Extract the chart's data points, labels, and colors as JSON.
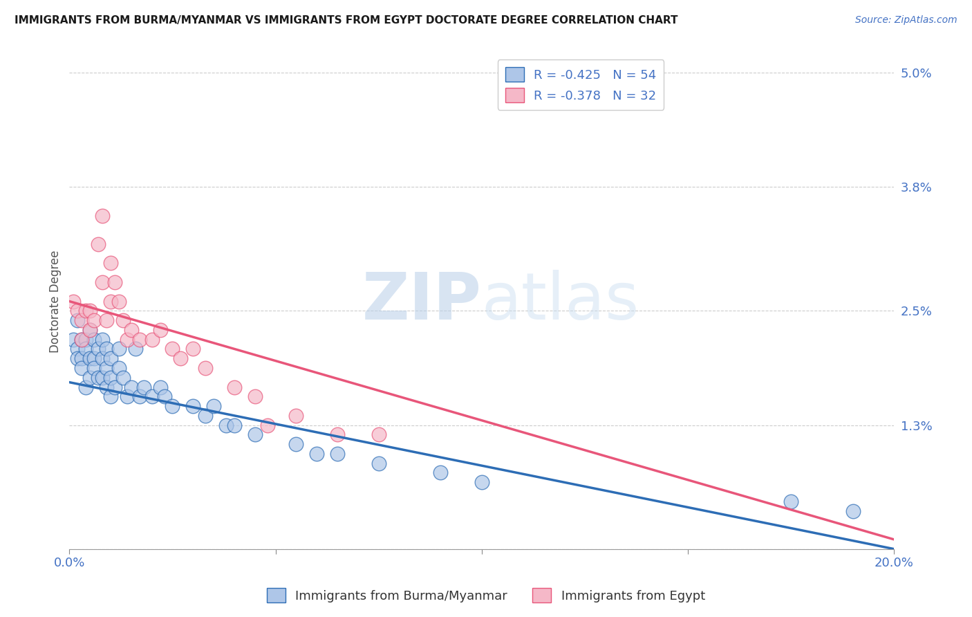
{
  "title": "IMMIGRANTS FROM BURMA/MYANMAR VS IMMIGRANTS FROM EGYPT DOCTORATE DEGREE CORRELATION CHART",
  "source": "Source: ZipAtlas.com",
  "ylabel": "Doctorate Degree",
  "legend_label1": "Immigrants from Burma/Myanmar",
  "legend_label2": "Immigrants from Egypt",
  "r1": -0.425,
  "n1": 54,
  "r2": -0.378,
  "n2": 32,
  "color1": "#aec6e8",
  "color2": "#f5b8c8",
  "line_color1": "#2d6db5",
  "line_color2": "#e8567a",
  "xlim": [
    0.0,
    0.2
  ],
  "ylim": [
    0.0,
    0.052
  ],
  "yticks": [
    0.0,
    0.013,
    0.025,
    0.038,
    0.05
  ],
  "ytick_labels": [
    "",
    "1.3%",
    "2.5%",
    "3.8%",
    "5.0%"
  ],
  "xticks": [
    0.0,
    0.05,
    0.1,
    0.15,
    0.2
  ],
  "xtick_labels": [
    "0.0%",
    "",
    "",
    "",
    "20.0%"
  ],
  "watermark_zip": "ZIP",
  "watermark_atlas": "atlas",
  "scatter1_x": [
    0.001,
    0.002,
    0.002,
    0.002,
    0.003,
    0.003,
    0.003,
    0.004,
    0.004,
    0.004,
    0.005,
    0.005,
    0.005,
    0.006,
    0.006,
    0.006,
    0.007,
    0.007,
    0.008,
    0.008,
    0.008,
    0.009,
    0.009,
    0.009,
    0.01,
    0.01,
    0.01,
    0.011,
    0.012,
    0.012,
    0.013,
    0.014,
    0.015,
    0.016,
    0.017,
    0.018,
    0.02,
    0.022,
    0.023,
    0.025,
    0.03,
    0.033,
    0.035,
    0.038,
    0.04,
    0.045,
    0.055,
    0.06,
    0.065,
    0.075,
    0.09,
    0.1,
    0.175,
    0.19
  ],
  "scatter1_y": [
    0.022,
    0.024,
    0.021,
    0.02,
    0.022,
    0.02,
    0.019,
    0.022,
    0.021,
    0.017,
    0.023,
    0.02,
    0.018,
    0.022,
    0.02,
    0.019,
    0.021,
    0.018,
    0.022,
    0.02,
    0.018,
    0.021,
    0.019,
    0.017,
    0.02,
    0.018,
    0.016,
    0.017,
    0.021,
    0.019,
    0.018,
    0.016,
    0.017,
    0.021,
    0.016,
    0.017,
    0.016,
    0.017,
    0.016,
    0.015,
    0.015,
    0.014,
    0.015,
    0.013,
    0.013,
    0.012,
    0.011,
    0.01,
    0.01,
    0.009,
    0.008,
    0.007,
    0.005,
    0.004
  ],
  "scatter2_x": [
    0.001,
    0.002,
    0.003,
    0.003,
    0.004,
    0.005,
    0.005,
    0.006,
    0.007,
    0.008,
    0.008,
    0.009,
    0.01,
    0.01,
    0.011,
    0.012,
    0.013,
    0.014,
    0.015,
    0.017,
    0.02,
    0.022,
    0.025,
    0.027,
    0.03,
    0.033,
    0.04,
    0.045,
    0.048,
    0.055,
    0.065,
    0.075
  ],
  "scatter2_y": [
    0.026,
    0.025,
    0.024,
    0.022,
    0.025,
    0.025,
    0.023,
    0.024,
    0.032,
    0.035,
    0.028,
    0.024,
    0.03,
    0.026,
    0.028,
    0.026,
    0.024,
    0.022,
    0.023,
    0.022,
    0.022,
    0.023,
    0.021,
    0.02,
    0.021,
    0.019,
    0.017,
    0.016,
    0.013,
    0.014,
    0.012,
    0.012
  ],
  "line1_y_start": 0.0175,
  "line1_y_end": 0.0,
  "line2_y_start": 0.026,
  "line2_y_end": 0.001,
  "background_color": "#ffffff",
  "grid_color": "#cccccc",
  "title_color": "#1a1a1a",
  "tick_color": "#4472c4"
}
